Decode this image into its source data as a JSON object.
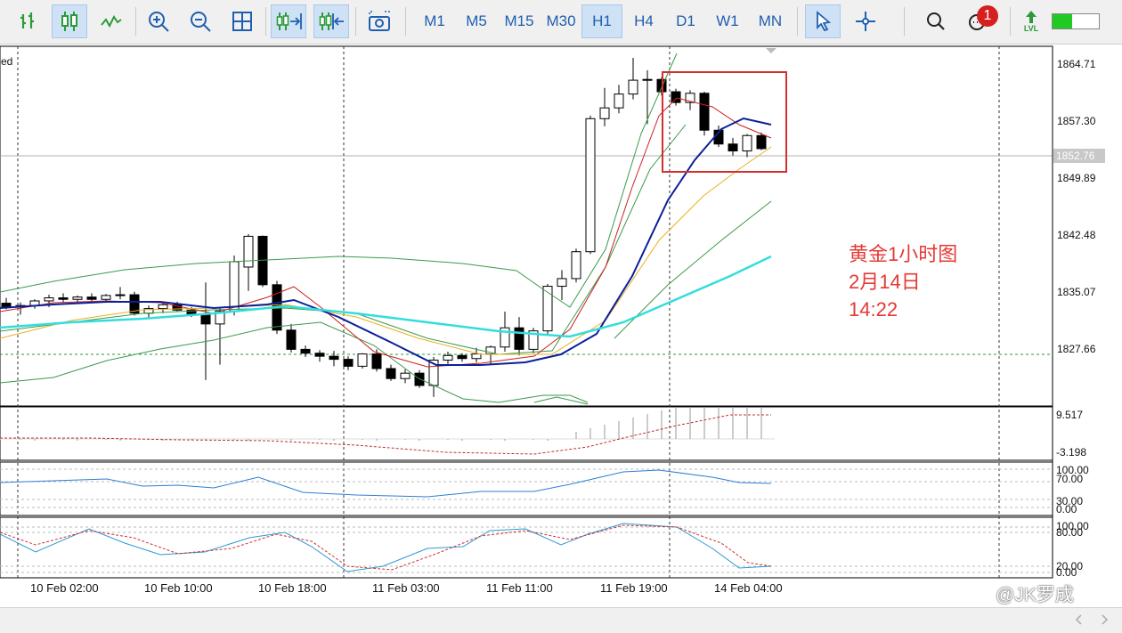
{
  "toolbar": {
    "buttons": [
      {
        "name": "bar-chart-button",
        "icon": "ohlc-bars-icon",
        "active": false
      },
      {
        "name": "candlestick-button",
        "icon": "candlestick-icon",
        "active": true
      },
      {
        "name": "line-chart-button",
        "icon": "line-chart-icon",
        "active": false
      },
      {
        "name": "zoom-in-button",
        "icon": "zoom-in-icon",
        "active": false
      },
      {
        "name": "zoom-out-button",
        "icon": "zoom-out-icon",
        "active": false
      },
      {
        "name": "grid-button",
        "icon": "grid-icon",
        "active": false
      },
      {
        "name": "autoscroll-button",
        "icon": "autoscroll-icon",
        "active": true
      },
      {
        "name": "chart-shift-button",
        "icon": "chart-shift-icon",
        "active": true
      },
      {
        "name": "screenshot-button",
        "icon": "camera-icon",
        "active": false
      }
    ],
    "timeframes": [
      "M1",
      "M5",
      "M15",
      "M30",
      "H1",
      "H4",
      "D1",
      "W1",
      "MN"
    ],
    "active_timeframe": "H1",
    "right_buttons": [
      {
        "name": "cursor-button",
        "icon": "cursor-arrow-icon",
        "active": true
      },
      {
        "name": "crosshair-button",
        "icon": "crosshair-icon",
        "active": false
      },
      {
        "name": "search-button",
        "icon": "search-icon",
        "active": false
      },
      {
        "name": "messages-button",
        "icon": "chat-icon",
        "active": false
      },
      {
        "name": "lvl-button",
        "icon": "lvl-icon",
        "active": false
      }
    ],
    "notification_count": "1",
    "lvl_label": "LVL",
    "signal_color": "#22c922"
  },
  "chart": {
    "title_fragment": "ed",
    "current_price": "1852.76",
    "price_labels": [
      "1864.71",
      "1857.30",
      "1849.89",
      "1842.48",
      "1835.07",
      "1827.66"
    ],
    "macd_labels": [
      "9.517",
      "-3.198"
    ],
    "rsi_labels": [
      "100.00",
      "70.00",
      "30.00",
      "0.00"
    ],
    "stoch_labels": [
      "100.00",
      "80.00",
      "20.00",
      "0.00"
    ],
    "time_labels": [
      "10 Feb 02:00",
      "10 Feb 10:00",
      "10 Feb 18:00",
      "11 Feb 03:00",
      "11 Feb 11:00",
      "11 Feb 19:00",
      "14 Feb 04:00"
    ],
    "colors": {
      "bull_candle": "#ffffff",
      "bear_candle": "#000000",
      "ma_fast": "#cc2020",
      "ma_mid": "#e8b020",
      "ma_slow": "#0b1f9a",
      "ma_trend": "#33dddd",
      "bollinger": "#3a9a4a",
      "highlight_box": "#d32f2f",
      "annotation": "#e53935"
    }
  },
  "annotation": {
    "line1": "黄金1小时图",
    "line2": "2月14日",
    "line3": "14:22"
  },
  "watermark": "@JK罗成"
}
